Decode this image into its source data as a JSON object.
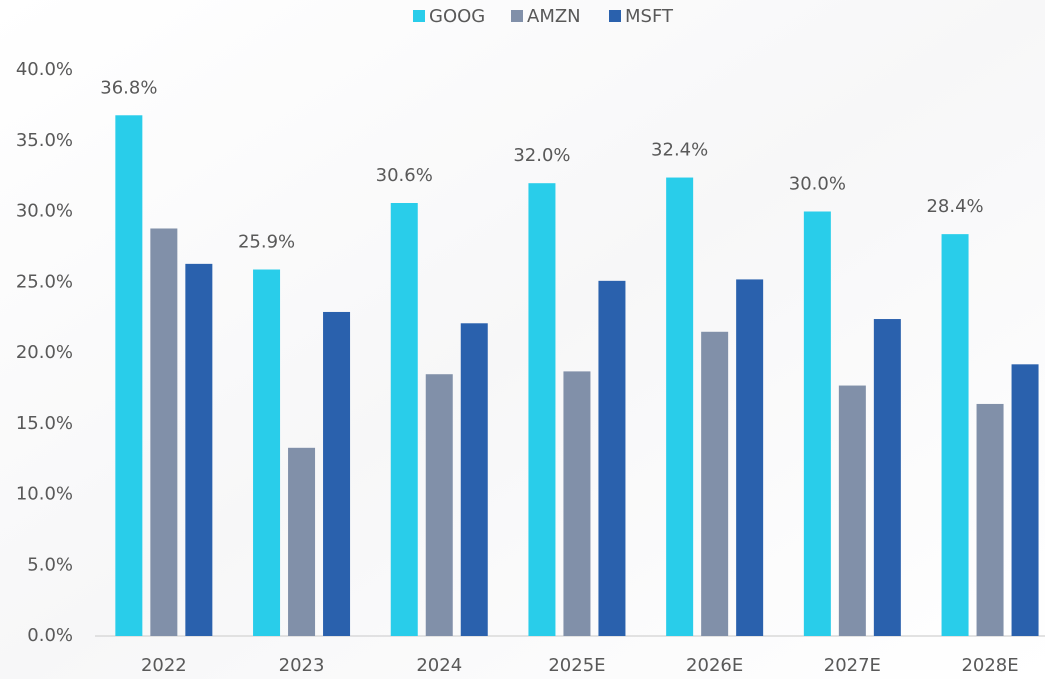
{
  "chart_data": {
    "type": "bar",
    "categories": [
      "2022",
      "2023",
      "2024",
      "2025E",
      "2026E",
      "2027E",
      "2028E"
    ],
    "series": [
      {
        "name": "GOOG",
        "color": "#29cdea",
        "values": [
          36.8,
          25.9,
          30.6,
          32.0,
          32.4,
          30.0,
          28.4
        ],
        "value_labels": [
          "36.8%",
          "25.9%",
          "30.6%",
          "32.0%",
          "32.4%",
          "30.0%",
          "28.4%"
        ]
      },
      {
        "name": "AMZN",
        "color": "#8190a9",
        "values": [
          28.8,
          13.3,
          18.5,
          18.7,
          21.5,
          17.7,
          16.4
        ]
      },
      {
        "name": "MSFT",
        "color": "#2a61ad",
        "values": [
          26.3,
          22.9,
          22.1,
          25.1,
          25.2,
          22.4,
          19.2
        ]
      }
    ],
    "ylim": [
      0,
      40
    ],
    "yticks": [
      {
        "value": 0,
        "label": "0.0%"
      },
      {
        "value": 5,
        "label": "5.0%"
      },
      {
        "value": 10,
        "label": "10.0%"
      },
      {
        "value": 15,
        "label": "15.0%"
      },
      {
        "value": 20,
        "label": "20.0%"
      },
      {
        "value": 25,
        "label": "25.0%"
      },
      {
        "value": 30,
        "label": "30.0%"
      },
      {
        "value": 35,
        "label": "35.0%"
      },
      {
        "value": 40,
        "label": "40.0%"
      }
    ],
    "legend": "top"
  }
}
